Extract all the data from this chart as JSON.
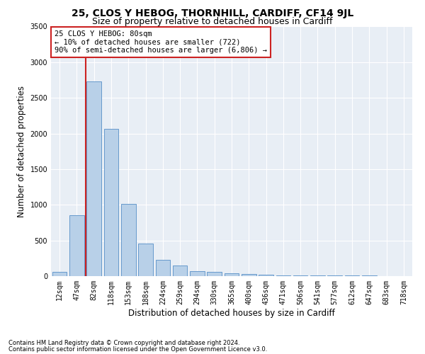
{
  "title1": "25, CLOS Y HEBOG, THORNHILL, CARDIFF, CF14 9JL",
  "title2": "Size of property relative to detached houses in Cardiff",
  "xlabel": "Distribution of detached houses by size in Cardiff",
  "ylabel": "Number of detached properties",
  "categories": [
    "12sqm",
    "47sqm",
    "82sqm",
    "118sqm",
    "153sqm",
    "188sqm",
    "224sqm",
    "259sqm",
    "294sqm",
    "330sqm",
    "365sqm",
    "400sqm",
    "436sqm",
    "471sqm",
    "506sqm",
    "541sqm",
    "577sqm",
    "612sqm",
    "647sqm",
    "683sqm",
    "718sqm"
  ],
  "values": [
    60,
    850,
    2730,
    2070,
    1010,
    460,
    230,
    145,
    70,
    55,
    40,
    28,
    18,
    12,
    8,
    5,
    5,
    5,
    5,
    3,
    3
  ],
  "bar_color": "#b8d0e8",
  "bar_edge_color": "#6699cc",
  "vline_color": "#cc2222",
  "vline_x_index": 2,
  "annotation_text": "25 CLOS Y HEBOG: 80sqm\n← 10% of detached houses are smaller (722)\n90% of semi-detached houses are larger (6,806) →",
  "annotation_box_facecolor": "#ffffff",
  "annotation_box_edgecolor": "#cc2222",
  "ylim": [
    0,
    3500
  ],
  "yticks": [
    0,
    500,
    1000,
    1500,
    2000,
    2500,
    3000,
    3500
  ],
  "bg_color": "#e8eef5",
  "footnote1": "Contains HM Land Registry data © Crown copyright and database right 2024.",
  "footnote2": "Contains public sector information licensed under the Open Government Licence v3.0.",
  "title1_fontsize": 10,
  "title2_fontsize": 9,
  "xlabel_fontsize": 8.5,
  "ylabel_fontsize": 8.5,
  "annot_fontsize": 7.5,
  "footnote_fontsize": 6,
  "tick_fontsize": 7
}
